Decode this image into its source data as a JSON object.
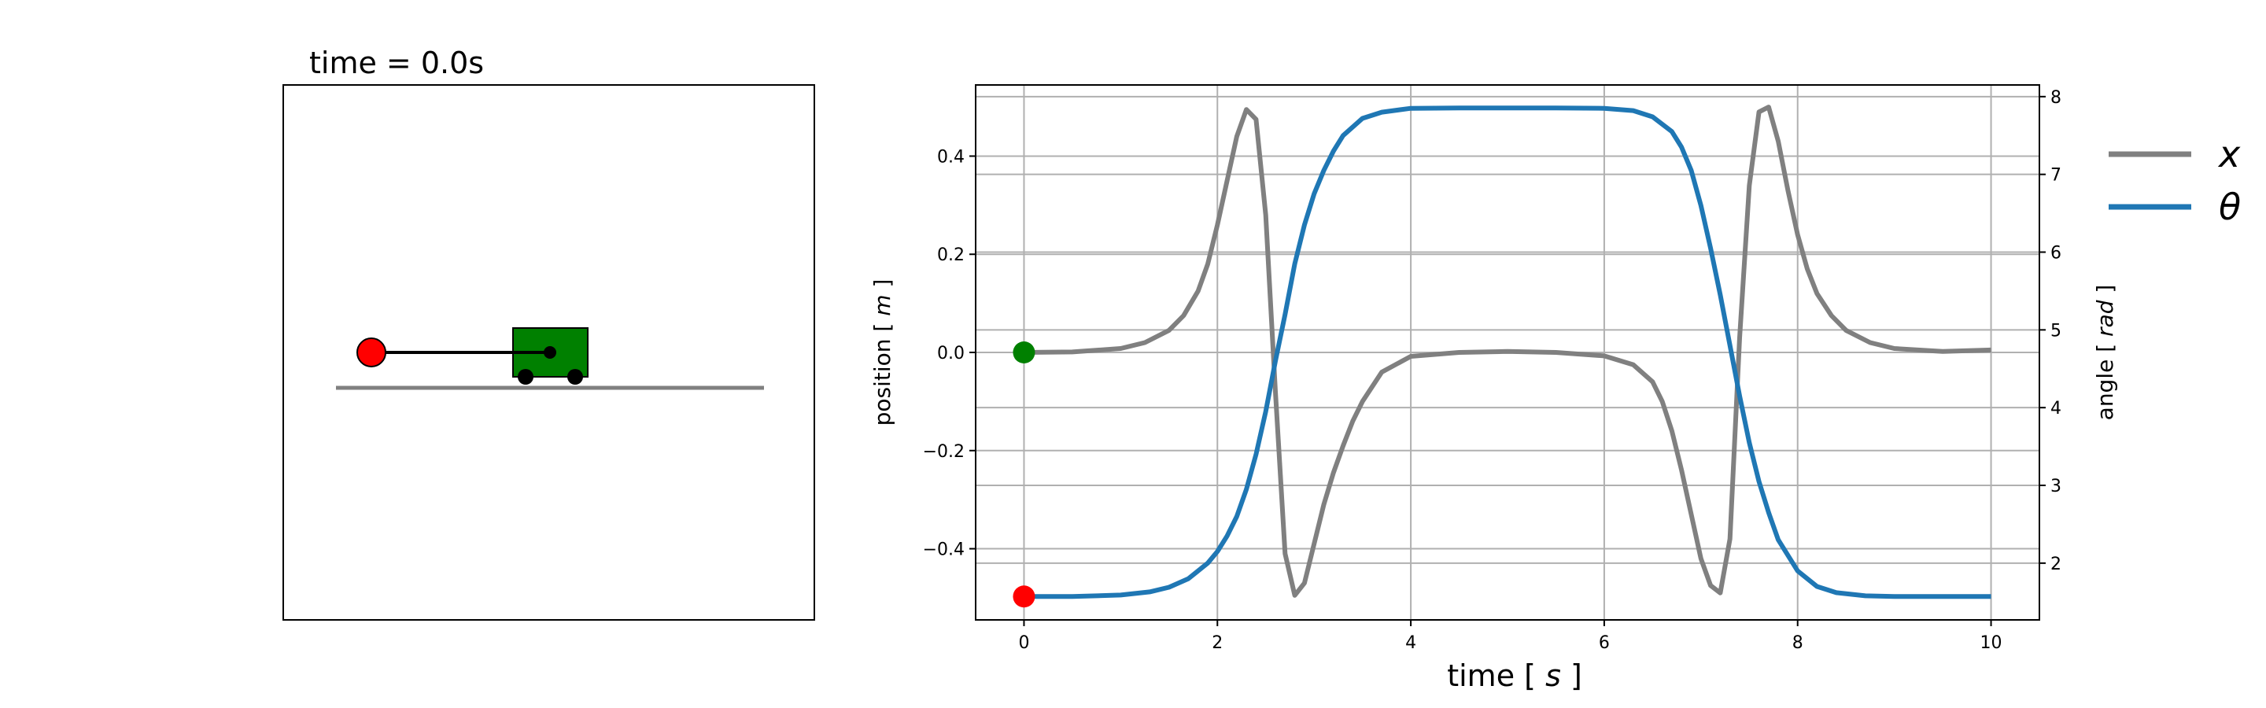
{
  "animation": {
    "title": "time = 0.0s",
    "colors": {
      "bob": "#ff0000",
      "cart": "#008000",
      "track": "#808080",
      "rod": "#000000"
    }
  },
  "chart_data": {
    "type": "line",
    "xlabel_prefix": "time [ ",
    "xlabel_unit": "s",
    "xlabel_suffix": " ]",
    "ylabel_left_prefix": "position [ ",
    "ylabel_left_unit": "m",
    "ylabel_left_suffix": " ]",
    "ylabel_right_prefix": "angle [ ",
    "ylabel_right_unit": "rad",
    "ylabel_right_suffix": " ]",
    "xlim": [
      -0.5,
      10.5
    ],
    "ylim_left": [
      -0.545,
      0.545
    ],
    "ylim_right": [
      1.27,
      8.15
    ],
    "xticks": [
      0,
      2,
      4,
      6,
      8,
      10
    ],
    "yticks_left": [
      -0.4,
      -0.2,
      0.0,
      0.2,
      0.4
    ],
    "yticks_left_labels": [
      "−0.4",
      "−0.2",
      "0.0",
      "0.2",
      "0.4"
    ],
    "yticks_right": [
      2,
      3,
      4,
      5,
      6,
      7,
      8
    ],
    "grid": true,
    "legend": {
      "placement": "right-outside-top"
    },
    "series": [
      {
        "name": "x",
        "axis": "left",
        "color": "#808080",
        "x": [
          0,
          0.5,
          1.0,
          1.25,
          1.5,
          1.65,
          1.8,
          1.9,
          2.0,
          2.1,
          2.2,
          2.3,
          2.4,
          2.5,
          2.6,
          2.7,
          2.8,
          2.9,
          3.0,
          3.1,
          3.2,
          3.3,
          3.4,
          3.5,
          3.7,
          4.0,
          4.5,
          5.0,
          5.5,
          6.0,
          6.3,
          6.5,
          6.6,
          6.7,
          6.8,
          6.9,
          7.0,
          7.1,
          7.2,
          7.3,
          7.4,
          7.5,
          7.6,
          7.7,
          7.8,
          7.9,
          8.0,
          8.1,
          8.2,
          8.35,
          8.5,
          8.75,
          9.0,
          9.5,
          10.0
        ],
        "y": [
          0.0,
          0.001,
          0.008,
          0.02,
          0.045,
          0.075,
          0.125,
          0.18,
          0.26,
          0.35,
          0.44,
          0.495,
          0.475,
          0.28,
          -0.08,
          -0.41,
          -0.495,
          -0.47,
          -0.39,
          -0.31,
          -0.245,
          -0.19,
          -0.14,
          -0.1,
          -0.04,
          -0.008,
          0.0,
          0.002,
          0.0,
          -0.007,
          -0.025,
          -0.06,
          -0.1,
          -0.16,
          -0.24,
          -0.33,
          -0.42,
          -0.475,
          -0.49,
          -0.38,
          0.03,
          0.34,
          0.49,
          0.5,
          0.43,
          0.33,
          0.24,
          0.17,
          0.12,
          0.075,
          0.045,
          0.02,
          0.008,
          0.002,
          0.005
        ]
      },
      {
        "name": "θ",
        "axis": "right",
        "color": "#1f77b4",
        "x": [
          0,
          0.5,
          1.0,
          1.3,
          1.5,
          1.7,
          1.9,
          2.0,
          2.1,
          2.2,
          2.3,
          2.4,
          2.5,
          2.6,
          2.7,
          2.8,
          2.9,
          3.0,
          3.1,
          3.2,
          3.3,
          3.5,
          3.7,
          4.0,
          4.5,
          5.0,
          5.5,
          6.0,
          6.3,
          6.5,
          6.7,
          6.8,
          6.9,
          7.0,
          7.1,
          7.2,
          7.3,
          7.4,
          7.5,
          7.6,
          7.7,
          7.8,
          8.0,
          8.2,
          8.4,
          8.7,
          9.0,
          9.5,
          10.0
        ],
        "y": [
          1.571,
          1.571,
          1.59,
          1.63,
          1.69,
          1.8,
          2.0,
          2.15,
          2.35,
          2.6,
          2.95,
          3.4,
          3.95,
          4.6,
          5.2,
          5.85,
          6.35,
          6.75,
          7.05,
          7.3,
          7.5,
          7.72,
          7.8,
          7.85,
          7.854,
          7.854,
          7.854,
          7.85,
          7.82,
          7.74,
          7.55,
          7.35,
          7.05,
          6.6,
          6.05,
          5.45,
          4.8,
          4.15,
          3.55,
          3.05,
          2.65,
          2.3,
          1.9,
          1.7,
          1.62,
          1.58,
          1.572,
          1.571,
          1.571
        ]
      }
    ],
    "markers": [
      {
        "name": "x-start",
        "axis": "left",
        "x": 0,
        "y": 0.0,
        "color": "#008000"
      },
      {
        "name": "theta-start",
        "axis": "right",
        "x": 0,
        "y": 1.571,
        "color": "#ff0000"
      }
    ]
  }
}
